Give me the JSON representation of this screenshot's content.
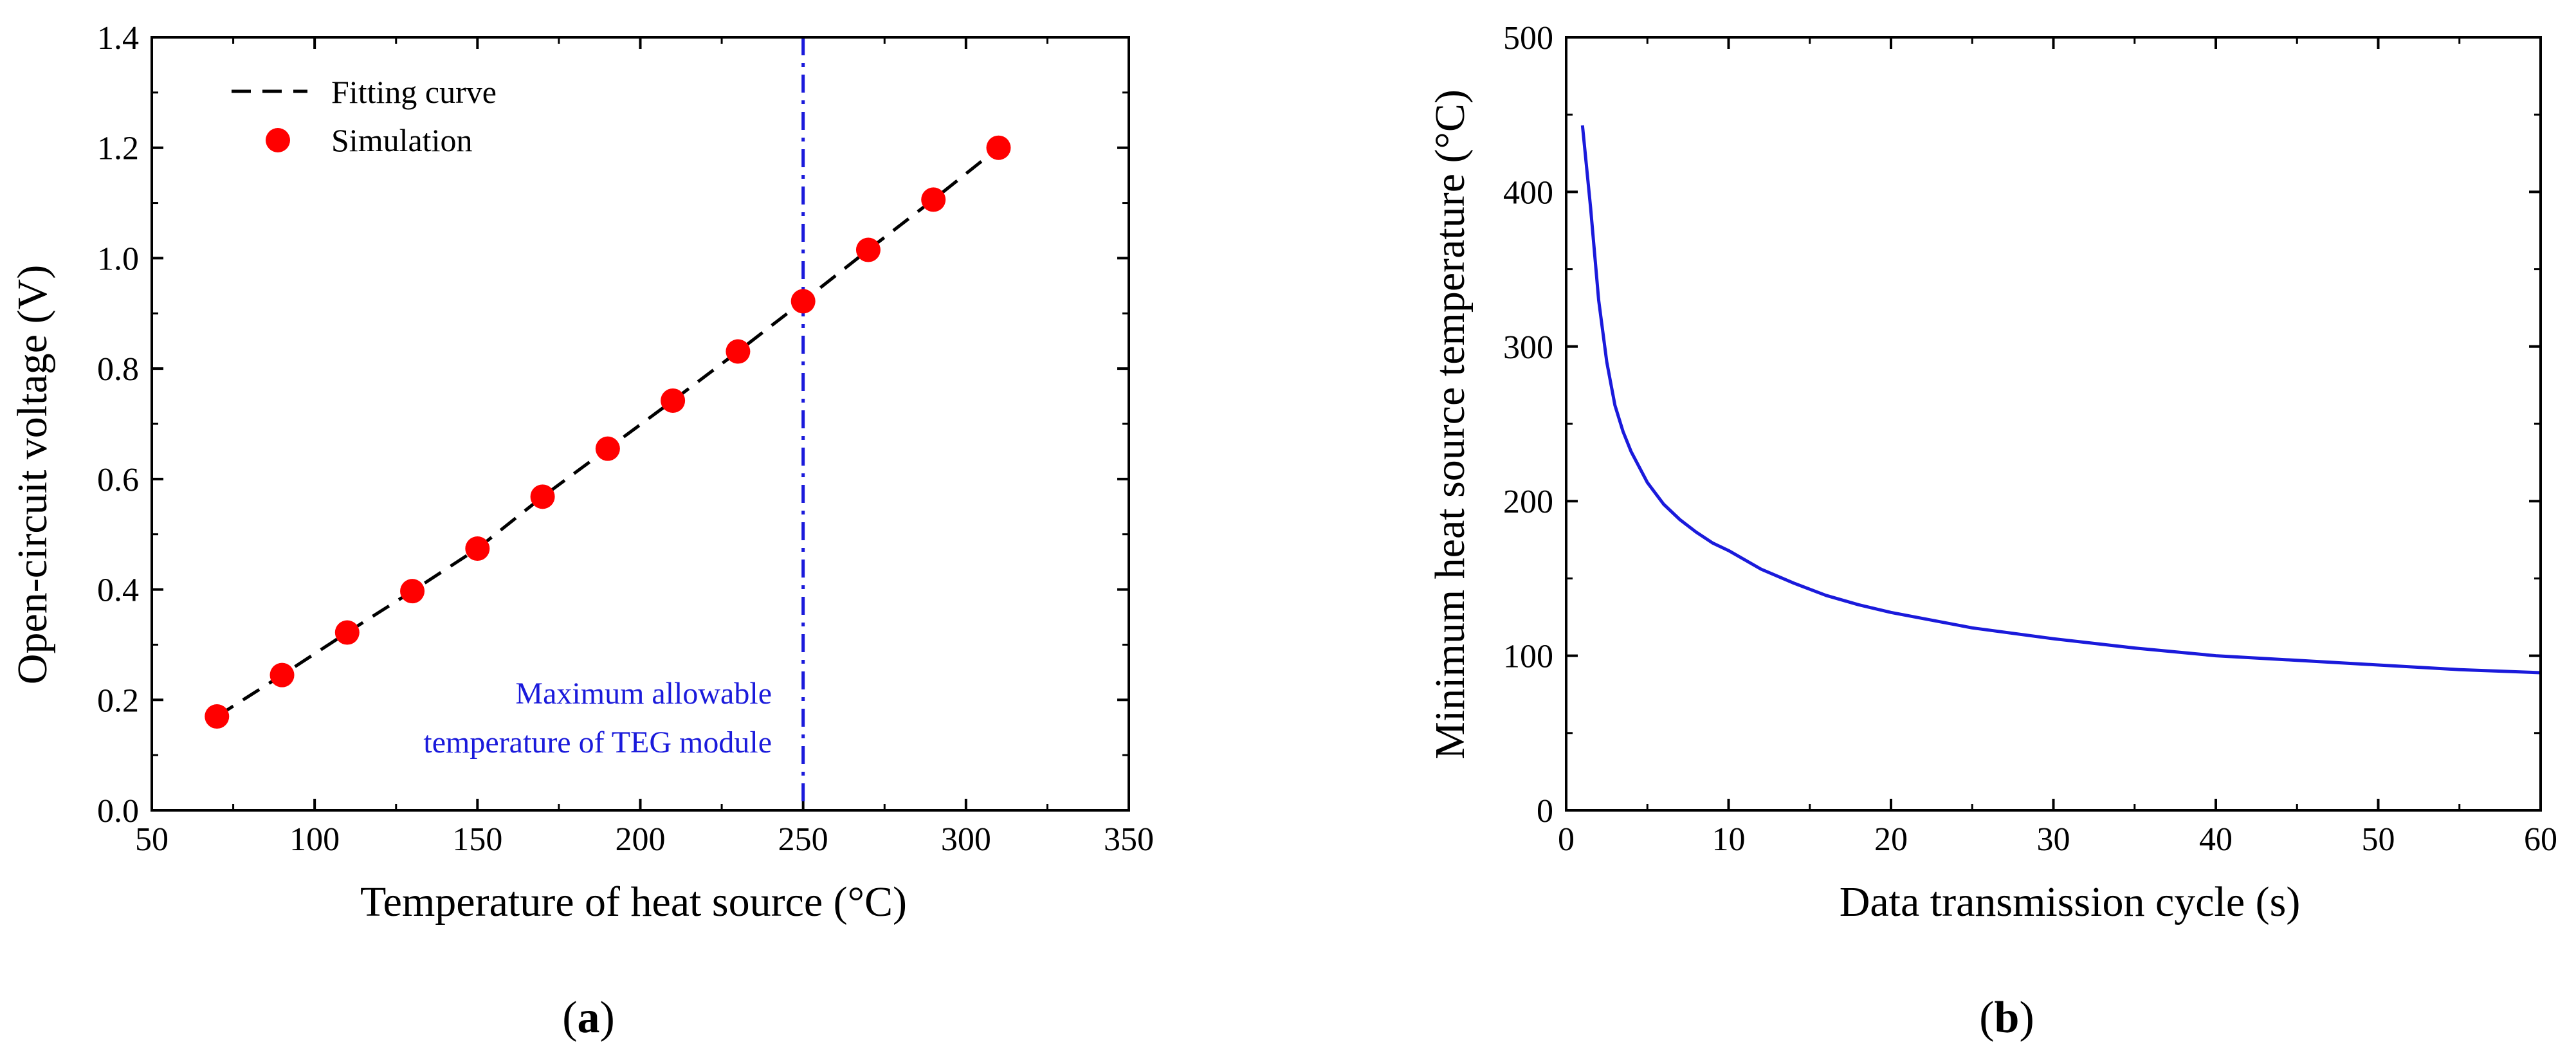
{
  "colors": {
    "marker": "#ff0000",
    "fit_line": "#000000",
    "curve_b": "#1a1adb",
    "ref_line": "#1a1adb",
    "annotation": "#1a1adb"
  },
  "chart_data": [
    {
      "panel": "(a)",
      "panel_parts": {
        "open": "(",
        "letter": "a",
        "close": ")"
      },
      "type": "scatter",
      "xlabel": "Temperature of heat source (°C)",
      "ylabel": "Open-circuit voltage (V)",
      "xlim": [
        50,
        350
      ],
      "ylim": [
        0.0,
        1.4
      ],
      "xticks": [
        50,
        100,
        150,
        200,
        250,
        300,
        350
      ],
      "xtick_labels": [
        "50",
        "100",
        "150",
        "200",
        "250",
        "300",
        "350"
      ],
      "yticks": [
        0.0,
        0.2,
        0.4,
        0.6,
        0.8,
        1.0,
        1.2,
        1.4
      ],
      "ytick_labels": [
        "0.0",
        "0.2",
        "0.4",
        "0.6",
        "0.8",
        "1.0",
        "1.2",
        "1.4"
      ],
      "legend": {
        "placement": "top-left",
        "entries": [
          "Fitting curve",
          "Simulation"
        ]
      },
      "series": [
        {
          "name": "Simulation",
          "style": "marker",
          "x": [
            70,
            90,
            110,
            130,
            150,
            170,
            190,
            210,
            230,
            250,
            270,
            290,
            310
          ],
          "y": [
            0.17,
            0.245,
            0.322,
            0.397,
            0.474,
            0.568,
            0.655,
            0.742,
            0.831,
            0.922,
            1.015,
            1.106,
            1.2
          ]
        },
        {
          "name": "Fitting curve",
          "style": "dashed-line",
          "x": [
            70,
            90,
            110,
            130,
            150,
            170,
            190,
            210,
            230,
            250,
            270,
            290,
            310
          ],
          "y": [
            0.17,
            0.245,
            0.322,
            0.397,
            0.474,
            0.568,
            0.655,
            0.742,
            0.831,
            0.922,
            1.015,
            1.106,
            1.2
          ]
        }
      ],
      "reference_line": {
        "axis": "x",
        "value": 250,
        "style": "dash-dot"
      },
      "annotation_lines": [
        "Maximum allowable",
        "temperature of TEG module"
      ]
    },
    {
      "panel": "(b)",
      "panel_parts": {
        "open": "(",
        "letter": "b",
        "close": ")"
      },
      "type": "line",
      "xlabel": "Data transmission cycle (s)",
      "ylabel": "Minimum heat source temperature (°C)",
      "xlim": [
        0,
        60
      ],
      "ylim": [
        0,
        500
      ],
      "xticks": [
        0,
        10,
        20,
        30,
        40,
        50,
        60
      ],
      "xtick_labels": [
        "0",
        "10",
        "20",
        "30",
        "40",
        "50",
        "60"
      ],
      "yticks": [
        0,
        100,
        200,
        300,
        400,
        500
      ],
      "ytick_labels": [
        "0",
        "100",
        "200",
        "300",
        "400",
        "500"
      ],
      "series": [
        {
          "name": "Minimum heat source temperature",
          "x": [
            1,
            1.5,
            2,
            2.5,
            3,
            3.5,
            4,
            5,
            6,
            7,
            8,
            9,
            10,
            12,
            14,
            16,
            18,
            20,
            25,
            30,
            35,
            40,
            45,
            50,
            55,
            60
          ],
          "y": [
            443,
            390,
            330,
            290,
            262,
            245,
            232,
            212,
            198,
            188,
            180,
            173,
            168,
            156,
            147,
            139,
            133,
            128,
            118,
            111,
            105,
            100,
            97,
            94,
            91,
            89
          ]
        }
      ]
    }
  ]
}
